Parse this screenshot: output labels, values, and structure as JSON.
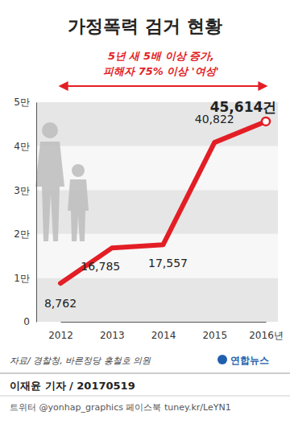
{
  "chart_data": {
    "type": "line",
    "title": "가정폭력 검거 현황",
    "subtitle": [
      "5년 새 5배 이상 증가,",
      "피해자 75% 이상 '여성'"
    ],
    "categories": [
      "2012",
      "2013",
      "2014",
      "2015",
      "2016년"
    ],
    "values": [
      8762,
      16785,
      17557,
      40822,
      45614
    ],
    "value_labels": [
      "8,762",
      "16,785",
      "17,557",
      "40,822",
      "45,614건"
    ],
    "data_labels": true,
    "color": "#e31e25",
    "ylim": [
      0,
      50000
    ],
    "yticks": [
      0,
      {
        "value": 10000,
        "label": "1만"
      },
      {
        "value": 20000,
        "label": "2만"
      },
      {
        "value": 30000,
        "label": "3만"
      },
      {
        "value": 40000,
        "label": "4만"
      },
      {
        "value": 50000,
        "label": "5만"
      }
    ],
    "grid": true,
    "annotations": [
      "자료/ 경찰청, 바른정당 홍철호 의원",
      "연합뉴스",
      "이재윤 기자 / 20170519",
      "트위터 @yonhap_graphics  페이스북 tuney.kr/LeYN1"
    ]
  }
}
